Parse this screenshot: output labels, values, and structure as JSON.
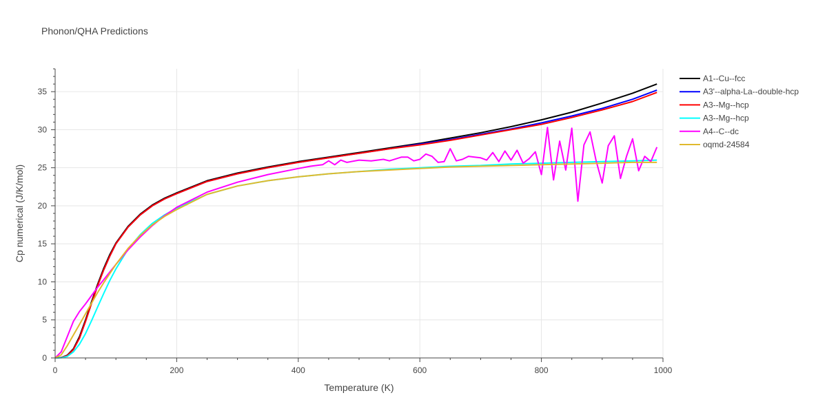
{
  "chart_data": {
    "type": "line",
    "title": "Phonon/QHA Predictions",
    "xlabel": "Temperature (K)",
    "ylabel": "Cp numerical (J/K/mol)",
    "xlim": [
      0,
      1000
    ],
    "ylim": [
      0,
      38
    ],
    "x_ticks": [
      0,
      200,
      400,
      600,
      800,
      1000
    ],
    "y_ticks": [
      0,
      5,
      10,
      15,
      20,
      25,
      30,
      35
    ],
    "grid": true,
    "legend_position": "top-right",
    "series": [
      {
        "name": "A1--Cu--fcc",
        "color": "#000000",
        "x": [
          0,
          10,
          20,
          30,
          40,
          50,
          60,
          70,
          80,
          90,
          100,
          120,
          140,
          160,
          180,
          200,
          250,
          300,
          350,
          400,
          450,
          500,
          550,
          600,
          650,
          700,
          750,
          800,
          850,
          900,
          950,
          990
        ],
        "y": [
          0,
          0.05,
          0.35,
          1.2,
          2.8,
          5.0,
          7.4,
          9.7,
          11.8,
          13.6,
          15.1,
          17.3,
          18.9,
          20.1,
          21.0,
          21.7,
          23.3,
          24.3,
          25.1,
          25.8,
          26.4,
          27.0,
          27.6,
          28.2,
          28.9,
          29.6,
          30.4,
          31.3,
          32.3,
          33.5,
          34.8,
          36.0
        ]
      },
      {
        "name": "A3'--alpha-La--double-hcp",
        "color": "#0000ff",
        "x": [
          0,
          10,
          20,
          30,
          40,
          50,
          60,
          70,
          80,
          90,
          100,
          120,
          140,
          160,
          180,
          200,
          250,
          300,
          350,
          400,
          450,
          500,
          550,
          600,
          650,
          700,
          750,
          800,
          850,
          900,
          950,
          990
        ],
        "y": [
          0,
          0.05,
          0.3,
          1.1,
          2.6,
          4.8,
          7.2,
          9.5,
          11.6,
          13.4,
          15.0,
          17.2,
          18.8,
          20.0,
          20.9,
          21.6,
          23.2,
          24.2,
          25.0,
          25.7,
          26.3,
          26.9,
          27.5,
          28.1,
          28.7,
          29.4,
          30.1,
          30.9,
          31.8,
          32.8,
          34.0,
          35.2
        ]
      },
      {
        "name": "A3--Mg--hcp",
        "color": "#ff0000",
        "x": [
          0,
          10,
          20,
          30,
          40,
          50,
          60,
          70,
          80,
          90,
          100,
          120,
          140,
          160,
          180,
          200,
          250,
          300,
          350,
          400,
          450,
          500,
          550,
          600,
          650,
          700,
          750,
          800,
          850,
          900,
          950,
          990
        ],
        "y": [
          0,
          0.05,
          0.3,
          1.1,
          2.6,
          4.8,
          7.2,
          9.5,
          11.6,
          13.4,
          15.0,
          17.2,
          18.8,
          20.0,
          20.9,
          21.6,
          23.2,
          24.2,
          25.0,
          25.7,
          26.3,
          26.9,
          27.5,
          28.0,
          28.6,
          29.3,
          30.0,
          30.7,
          31.6,
          32.6,
          33.7,
          34.9
        ]
      },
      {
        "name": "A3--Mg--hcp",
        "color": "#00ffff",
        "x": [
          0,
          10,
          20,
          30,
          40,
          50,
          60,
          70,
          80,
          90,
          100,
          120,
          140,
          160,
          180,
          200,
          250,
          300,
          350,
          400,
          450,
          500,
          550,
          600,
          650,
          700,
          750,
          800,
          850,
          900,
          950,
          990
        ],
        "y": [
          0,
          0.02,
          0.2,
          0.8,
          1.8,
          3.2,
          4.9,
          6.7,
          8.5,
          10.2,
          11.7,
          14.3,
          16.2,
          17.7,
          18.8,
          19.7,
          21.5,
          22.6,
          23.3,
          23.8,
          24.2,
          24.5,
          24.8,
          25.0,
          25.2,
          25.3,
          25.5,
          25.6,
          25.7,
          25.8,
          25.9,
          26.0
        ]
      },
      {
        "name": "A4--C--dc",
        "color": "#ff00ff",
        "x": [
          0,
          10,
          20,
          30,
          40,
          50,
          60,
          70,
          80,
          90,
          100,
          120,
          140,
          160,
          180,
          200,
          250,
          300,
          350,
          400,
          420,
          440,
          450,
          460,
          470,
          480,
          500,
          520,
          540,
          550,
          570,
          580,
          590,
          600,
          610,
          620,
          630,
          640,
          650,
          660,
          670,
          680,
          690,
          700,
          710,
          720,
          730,
          740,
          750,
          760,
          770,
          780,
          790,
          800,
          810,
          820,
          830,
          840,
          850,
          860,
          870,
          880,
          890,
          900,
          910,
          920,
          930,
          940,
          950,
          960,
          970,
          980,
          990
        ],
        "y": [
          0,
          0.8,
          2.8,
          4.8,
          6.1,
          7.1,
          8.2,
          9.3,
          10.3,
          11.3,
          12.3,
          14.2,
          15.9,
          17.4,
          18.7,
          19.8,
          21.8,
          23.1,
          24.1,
          24.9,
          25.2,
          25.4,
          25.9,
          25.4,
          26.0,
          25.7,
          26.0,
          25.9,
          26.1,
          25.9,
          26.4,
          26.4,
          25.9,
          26.1,
          26.8,
          26.5,
          25.7,
          25.8,
          27.5,
          25.9,
          26.1,
          26.5,
          26.4,
          26.3,
          26.0,
          27.0,
          25.8,
          27.2,
          26.0,
          27.3,
          25.6,
          26.2,
          27.1,
          24.1,
          30.3,
          23.4,
          28.5,
          24.7,
          30.2,
          20.6,
          28.0,
          29.7,
          25.9,
          23.0,
          27.9,
          29.2,
          23.6,
          26.5,
          28.8,
          24.6,
          26.5,
          25.8,
          27.7
        ]
      },
      {
        "name": "oqmd-24584",
        "color": "#e0b92d",
        "x": [
          0,
          10,
          20,
          30,
          40,
          50,
          60,
          70,
          80,
          90,
          100,
          120,
          140,
          160,
          180,
          200,
          250,
          300,
          350,
          400,
          450,
          500,
          550,
          600,
          650,
          700,
          750,
          800,
          850,
          900,
          950,
          990
        ],
        "y": [
          0,
          0.4,
          1.6,
          3.0,
          4.4,
          5.8,
          7.2,
          8.6,
          9.9,
          11.1,
          12.3,
          14.4,
          16.1,
          17.5,
          18.6,
          19.5,
          21.5,
          22.6,
          23.3,
          23.8,
          24.2,
          24.5,
          24.7,
          24.9,
          25.1,
          25.2,
          25.3,
          25.4,
          25.5,
          25.6,
          25.7,
          25.7
        ]
      }
    ]
  }
}
